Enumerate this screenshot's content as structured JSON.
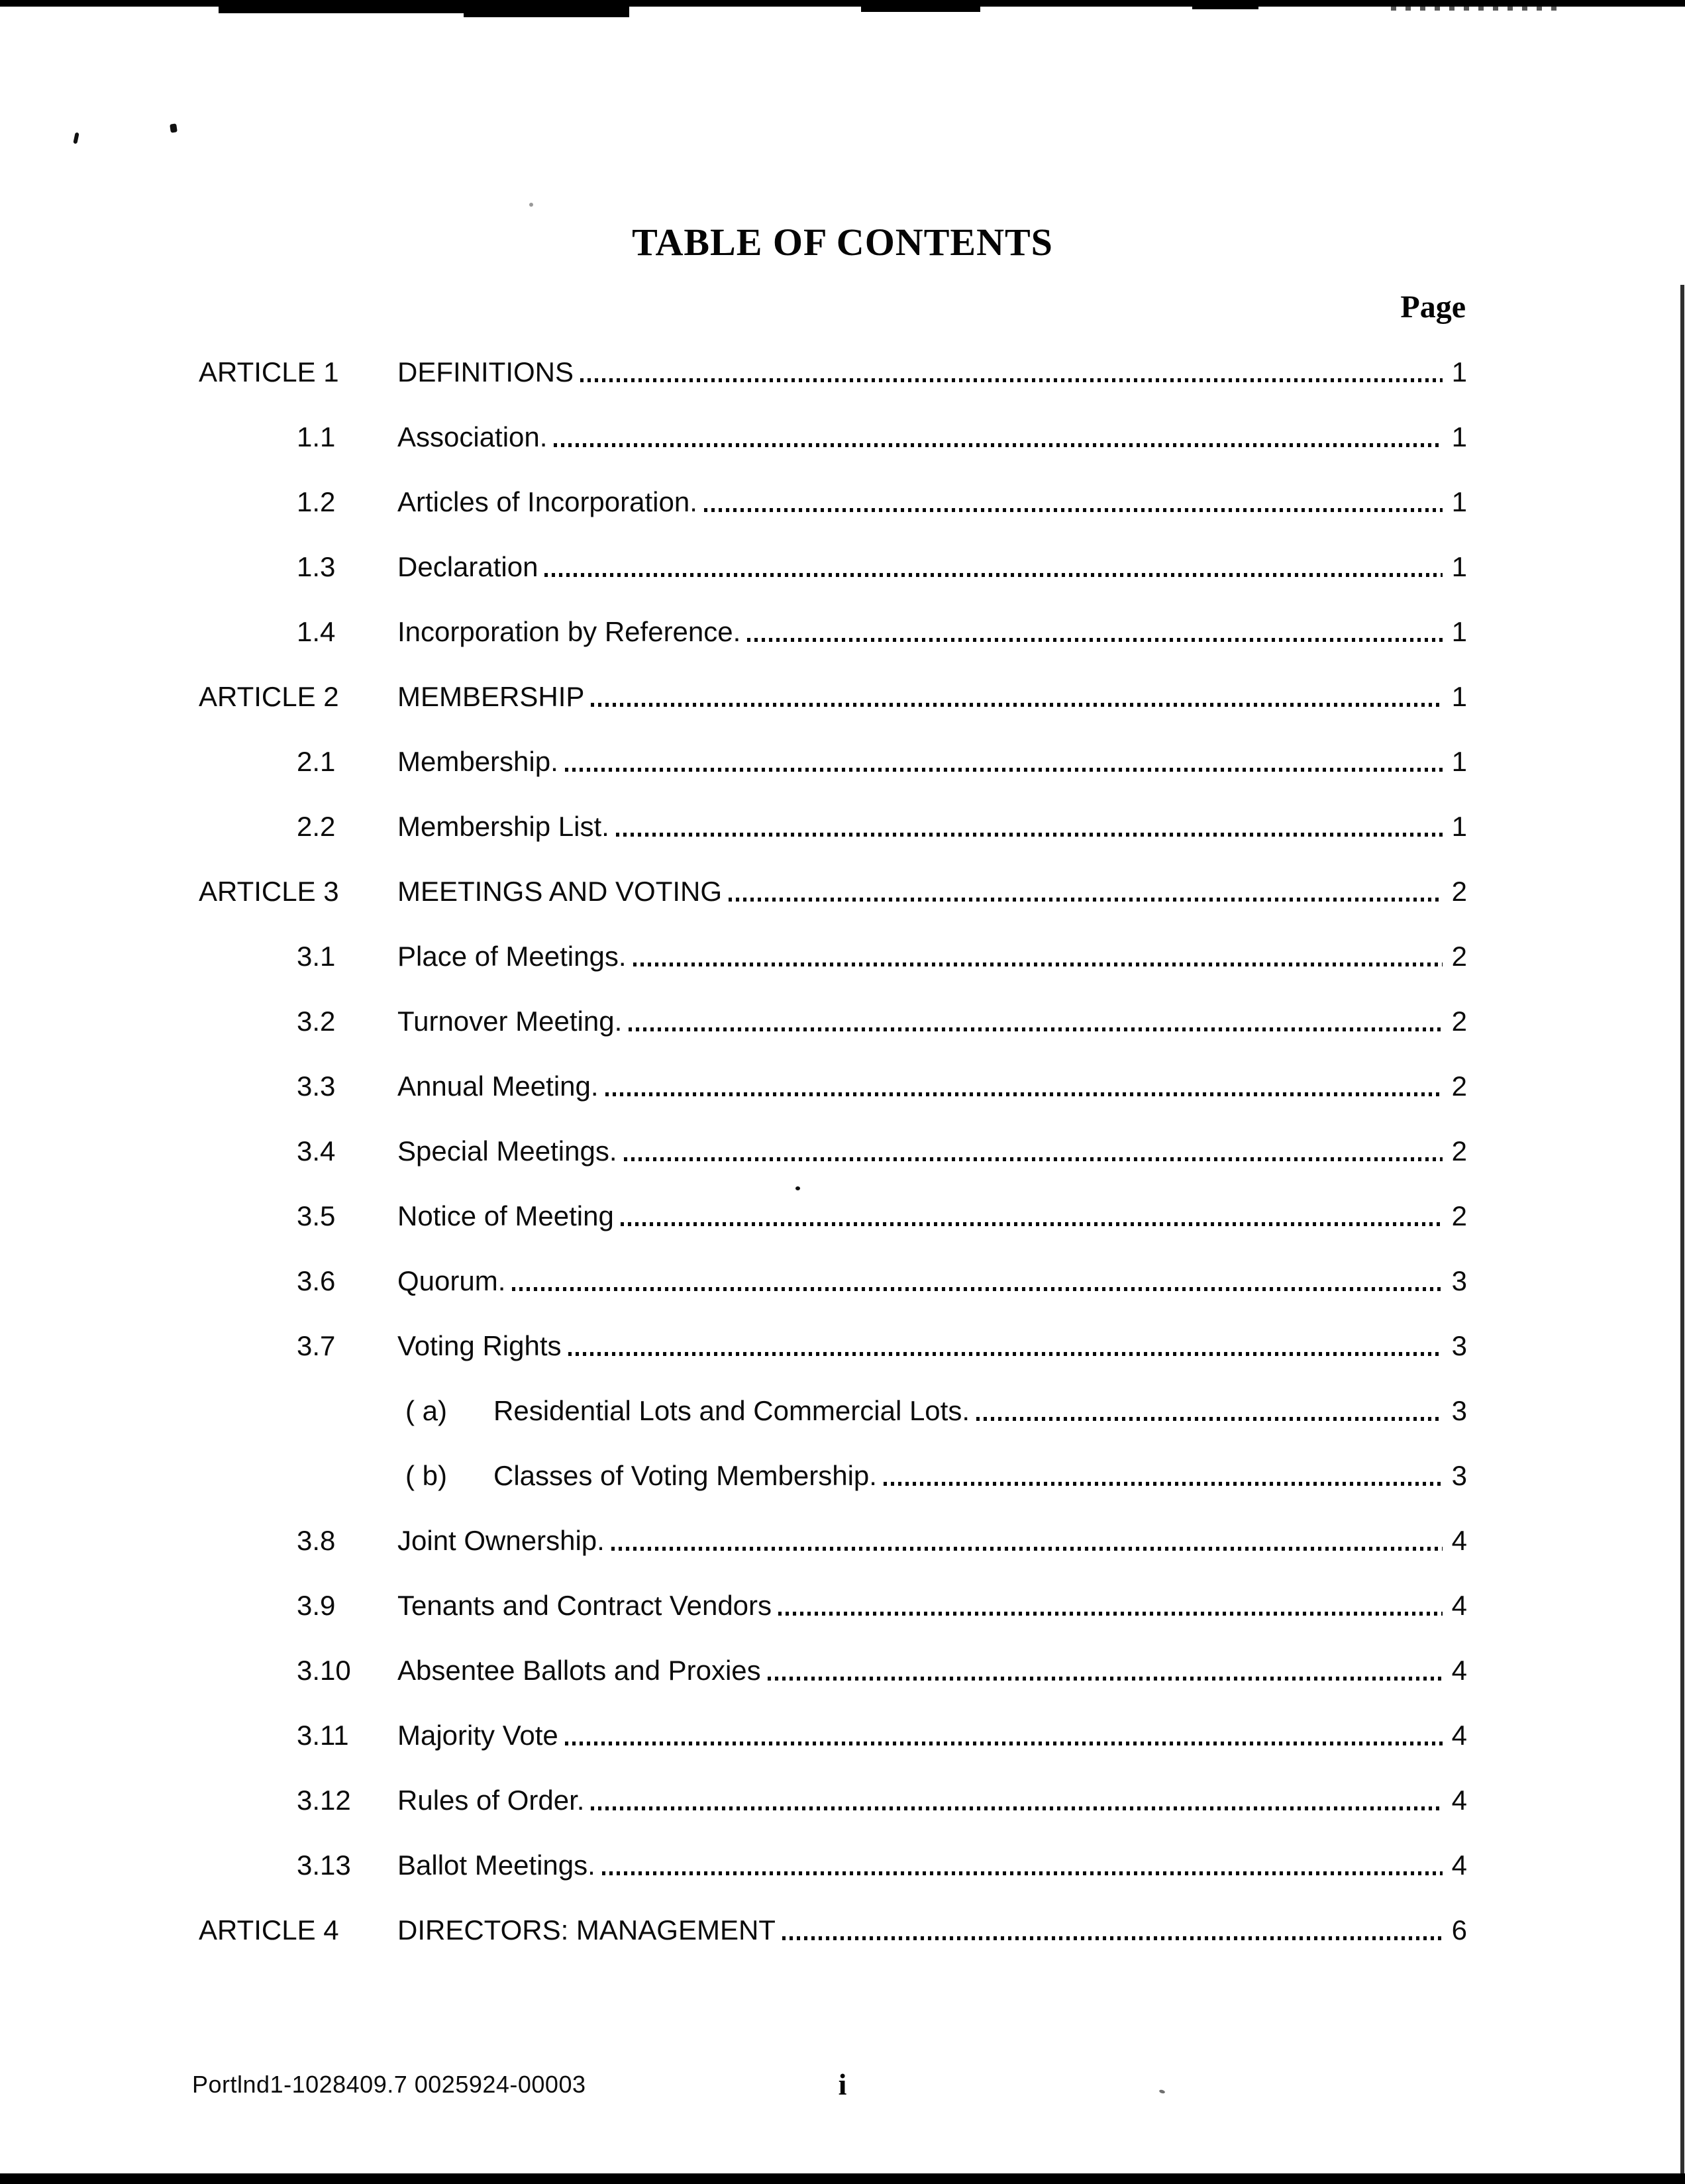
{
  "doc": {
    "title": "TABLE OF CONTENTS",
    "page_column_header": "Page",
    "footer_id": "Portlnd1-1028409.7 0025924-00003",
    "page_number_label": "i"
  },
  "colors": {
    "ink": "#0b0b0b",
    "paper": "#ffffff"
  },
  "toc": {
    "rows": [
      {
        "type": "article",
        "label": "ARTICLE 1",
        "title": "DEFINITIONS",
        "page": "1"
      },
      {
        "type": "section",
        "num": "1.1",
        "title": "Association.",
        "page": "1"
      },
      {
        "type": "section",
        "num": "1.2",
        "title": "Articles of Incorporation.",
        "page": "1"
      },
      {
        "type": "section",
        "num": "1.3",
        "title": "Declaration",
        "page": "1"
      },
      {
        "type": "section",
        "num": "1.4",
        "title": "Incorporation by Reference.",
        "page": "1"
      },
      {
        "type": "article",
        "label": "ARTICLE 2",
        "title": "MEMBERSHIP",
        "page": "1"
      },
      {
        "type": "section",
        "num": "2.1",
        "title": "Membership.",
        "page": "1"
      },
      {
        "type": "section",
        "num": "2.2",
        "title": "Membership List.",
        "page": "1"
      },
      {
        "type": "article",
        "label": "ARTICLE 3",
        "title": "MEETINGS AND VOTING",
        "page": "2"
      },
      {
        "type": "section",
        "num": "3.1",
        "title": "Place of Meetings.",
        "page": "2"
      },
      {
        "type": "section",
        "num": "3.2",
        "title": "Turnover Meeting.",
        "page": "2"
      },
      {
        "type": "section",
        "num": "3.3",
        "title": "Annual Meeting.",
        "page": "2"
      },
      {
        "type": "section",
        "num": "3.4",
        "title": "Special Meetings.",
        "page": "2"
      },
      {
        "type": "section",
        "num": "3.5",
        "title": "Notice of Meeting",
        "page": "2"
      },
      {
        "type": "section",
        "num": "3.6",
        "title": "Quorum.",
        "page": "3"
      },
      {
        "type": "section",
        "num": "3.7",
        "title": "Voting Rights",
        "page": "3"
      },
      {
        "type": "sub",
        "num": "( a)",
        "title": "Residential Lots and Commercial Lots.",
        "page": "3"
      },
      {
        "type": "sub",
        "num": "( b)",
        "title": "Classes of Voting Membership.",
        "page": "3"
      },
      {
        "type": "section",
        "num": "3.8",
        "title": "Joint Ownership.",
        "page": "4"
      },
      {
        "type": "section",
        "num": "3.9",
        "title": "Tenants and Contract Vendors",
        "page": "4"
      },
      {
        "type": "section",
        "num": "3.10",
        "title": "Absentee Ballots and Proxies",
        "page": "4"
      },
      {
        "type": "section",
        "num": "3.11",
        "title": "Majority Vote",
        "page": "4"
      },
      {
        "type": "section",
        "num": "3.12",
        "title": "Rules of Order.",
        "page": "4"
      },
      {
        "type": "section",
        "num": "3.13",
        "title": "Ballot Meetings.",
        "page": "4"
      },
      {
        "type": "article",
        "label": "ARTICLE 4",
        "title": "DIRECTORS: MANAGEMENT",
        "page": "6"
      }
    ]
  }
}
